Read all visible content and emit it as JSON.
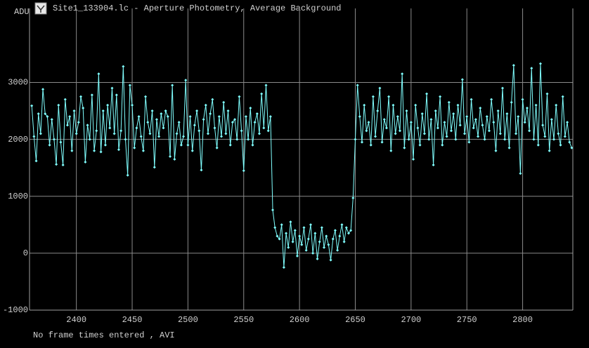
{
  "chart_data": {
    "type": "line",
    "title": "Site1_133904.lc - Aperture Photometry, Average Background",
    "y_label": "ADU",
    "footer": "No frame times entered , AVI",
    "xlim": [
      2358,
      2845
    ],
    "ylim": [
      -1000,
      4300
    ],
    "xticks": [
      2400,
      2450,
      2500,
      2550,
      2600,
      2650,
      2700,
      2750,
      2800
    ],
    "yticks": [
      -1000,
      0,
      1000,
      2000,
      3000
    ],
    "grid": true,
    "x": [
      2360,
      2362,
      2364,
      2366,
      2368,
      2370,
      2372,
      2374,
      2376,
      2378,
      2380,
      2382,
      2384,
      2386,
      2388,
      2390,
      2392,
      2394,
      2396,
      2398,
      2400,
      2402,
      2404,
      2406,
      2408,
      2410,
      2412,
      2414,
      2416,
      2418,
      2420,
      2422,
      2424,
      2426,
      2428,
      2430,
      2432,
      2434,
      2436,
      2438,
      2440,
      2442,
      2444,
      2446,
      2448,
      2450,
      2452,
      2454,
      2456,
      2458,
      2460,
      2462,
      2464,
      2466,
      2468,
      2470,
      2472,
      2474,
      2476,
      2478,
      2480,
      2482,
      2484,
      2486,
      2488,
      2490,
      2492,
      2494,
      2496,
      2498,
      2500,
      2502,
      2504,
      2506,
      2508,
      2510,
      2512,
      2514,
      2516,
      2518,
      2520,
      2522,
      2524,
      2526,
      2528,
      2530,
      2532,
      2534,
      2536,
      2538,
      2540,
      2542,
      2544,
      2546,
      2548,
      2550,
      2552,
      2554,
      2556,
      2558,
      2560,
      2562,
      2564,
      2566,
      2568,
      2570,
      2572,
      2574,
      2576,
      2578,
      2580,
      2582,
      2584,
      2586,
      2588,
      2590,
      2592,
      2594,
      2596,
      2598,
      2600,
      2602,
      2604,
      2606,
      2608,
      2610,
      2612,
      2614,
      2616,
      2618,
      2620,
      2622,
      2624,
      2626,
      2628,
      2630,
      2632,
      2634,
      2636,
      2638,
      2640,
      2642,
      2644,
      2646,
      2648,
      2650,
      2652,
      2654,
      2656,
      2658,
      2660,
      2662,
      2664,
      2666,
      2668,
      2670,
      2672,
      2674,
      2676,
      2678,
      2680,
      2682,
      2684,
      2686,
      2688,
      2690,
      2692,
      2694,
      2696,
      2698,
      2700,
      2702,
      2704,
      2706,
      2708,
      2710,
      2712,
      2714,
      2716,
      2718,
      2720,
      2722,
      2724,
      2726,
      2728,
      2730,
      2732,
      2734,
      2736,
      2738,
      2740,
      2742,
      2744,
      2746,
      2748,
      2750,
      2752,
      2754,
      2756,
      2758,
      2760,
      2762,
      2764,
      2766,
      2768,
      2770,
      2772,
      2774,
      2776,
      2778,
      2780,
      2782,
      2784,
      2786,
      2788,
      2790,
      2792,
      2794,
      2796,
      2798,
      2800,
      2802,
      2804,
      2806,
      2808,
      2810,
      2812,
      2814,
      2816,
      2818,
      2820,
      2822,
      2824,
      2826,
      2828,
      2830,
      2832,
      2834,
      2836,
      2838,
      2840,
      2842,
      2844
    ],
    "series": [
      {
        "color": "#80ffff",
        "values": [
          2590,
          2050,
          1620,
          2450,
          2100,
          2880,
          2450,
          2400,
          1900,
          2350,
          2000,
          1560,
          2600,
          1950,
          1550,
          2700,
          2250,
          2400,
          1800,
          2500,
          2100,
          2300,
          2750,
          2550,
          1600,
          2250,
          2000,
          2780,
          1800,
          2150,
          3150,
          1780,
          2500,
          1900,
          2600,
          2200,
          2900,
          2100,
          2780,
          1820,
          2150,
          3280,
          2000,
          1370,
          2950,
          2600,
          1850,
          2200,
          2400,
          2050,
          1800,
          2750,
          2300,
          2100,
          2500,
          1510,
          2350,
          2050,
          2450,
          2200,
          2500,
          2400,
          1700,
          2950,
          1650,
          2100,
          2300,
          1900,
          2050,
          3040,
          1900,
          2400,
          1800,
          2250,
          2500,
          2150,
          1460,
          2350,
          2600,
          2100,
          2450,
          2700,
          2200,
          1850,
          2400,
          2050,
          2650,
          2100,
          2500,
          1900,
          2300,
          2350,
          2000,
          2750,
          2150,
          1450,
          2400,
          2000,
          2550,
          1900,
          2300,
          2450,
          2100,
          2800,
          2200,
          2950,
          2150,
          2400,
          760,
          450,
          300,
          250,
          500,
          -250,
          350,
          100,
          550,
          200,
          400,
          -50,
          300,
          150,
          450,
          50,
          250,
          500,
          0,
          350,
          -100,
          200,
          450,
          100,
          300,
          150,
          -120,
          250,
          400,
          50,
          300,
          500,
          200,
          450,
          350,
          400,
          970,
          2000,
          2950,
          2400,
          1950,
          2600,
          2150,
          2300,
          1900,
          2750,
          2050,
          2500,
          2900,
          1950,
          2350,
          2200,
          2750,
          1800,
          2600,
          2100,
          2400,
          2150,
          3150,
          1850,
          2500,
          2000,
          2300,
          1650,
          2600,
          2200,
          1900,
          2450,
          2100,
          2800,
          2000,
          2350,
          1550,
          2500,
          2200,
          2750,
          1900,
          2300,
          2050,
          2650,
          2150,
          2450,
          2000,
          2600,
          2250,
          3050,
          2100,
          2400,
          1950,
          2700,
          2200,
          2350,
          2050,
          2550,
          2250,
          2000,
          2400,
          2150,
          2700,
          2300,
          1800,
          2500,
          2100,
          2900,
          2000,
          2450,
          1850,
          2650,
          3300,
          2100,
          2400,
          1400,
          2700,
          2300,
          2550,
          2150,
          3250,
          2000,
          2600,
          1900,
          3330,
          2250,
          2050,
          2800,
          1800,
          2350,
          2000,
          2600,
          2100,
          1900,
          2750,
          2050,
          2300,
          1950,
          1850
        ]
      }
    ]
  }
}
